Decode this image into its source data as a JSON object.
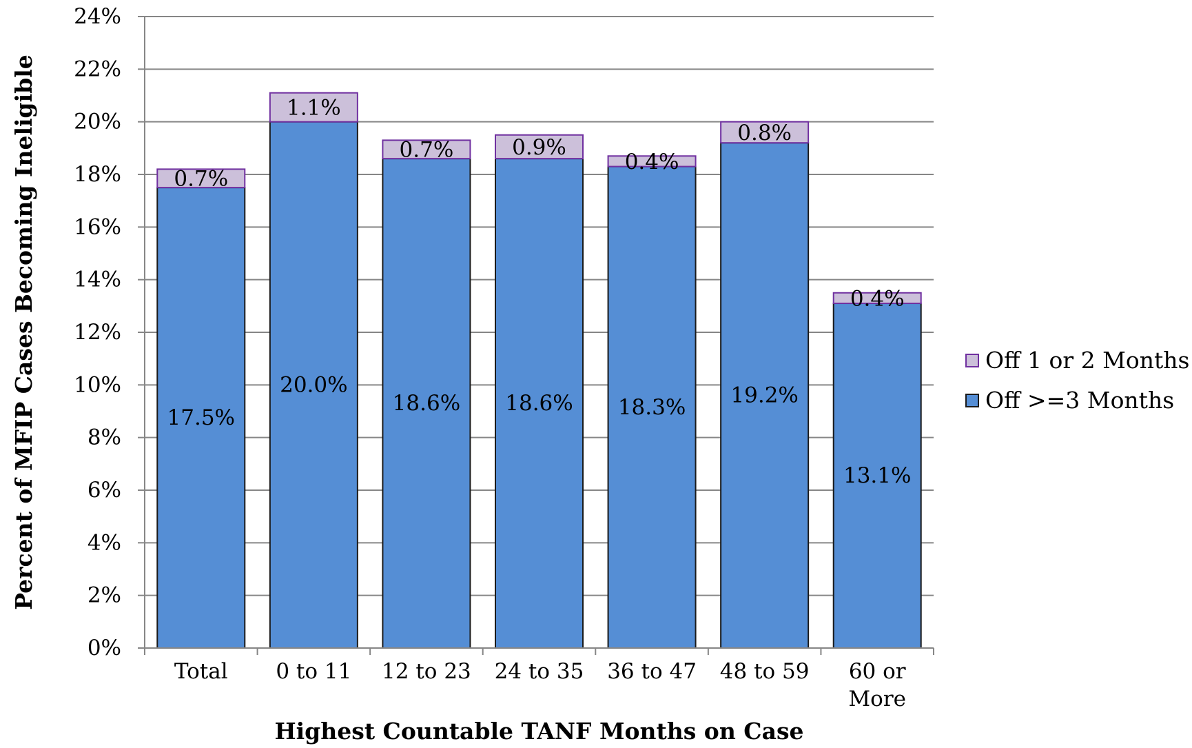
{
  "chart_data": {
    "type": "bar",
    "stacked": true,
    "title": "",
    "xlabel": "Highest Countable TANF Months on Case",
    "ylabel": "Percent of MFIP Cases Becoming Ineligible",
    "ylim": [
      0,
      24
    ],
    "y_ticks": [
      "0%",
      "2%",
      "4%",
      "6%",
      "8%",
      "10%",
      "12%",
      "14%",
      "16%",
      "18%",
      "20%",
      "22%",
      "24%"
    ],
    "categories": [
      "Total",
      "0 to 11",
      "12 to 23",
      "24 to 35",
      "36 to 47",
      "48 to 59",
      "60 or More"
    ],
    "series": [
      {
        "name": "Off >=3 Months",
        "color": "#558ed5",
        "values": [
          17.5,
          20.0,
          18.6,
          18.6,
          18.3,
          19.2,
          13.1
        ],
        "labels": [
          "17.5%",
          "20.0%",
          "18.6%",
          "18.6%",
          "18.3%",
          "19.2%",
          "13.1%"
        ]
      },
      {
        "name": "Off 1 or 2 Months",
        "color": "#ccc0da",
        "values": [
          0.7,
          1.1,
          0.7,
          0.9,
          0.4,
          0.8,
          0.4
        ],
        "labels": [
          "0.7%",
          "1.1%",
          "0.7%",
          "0.9%",
          "0.4%",
          "0.8%",
          "0.4%"
        ]
      }
    ],
    "legend": [
      {
        "name": "Off 1 or 2 Months",
        "color": "#ccc0da"
      },
      {
        "name": "Off >=3 Months",
        "color": "#558ed5"
      }
    ],
    "legend_position": "right",
    "grid": true
  }
}
